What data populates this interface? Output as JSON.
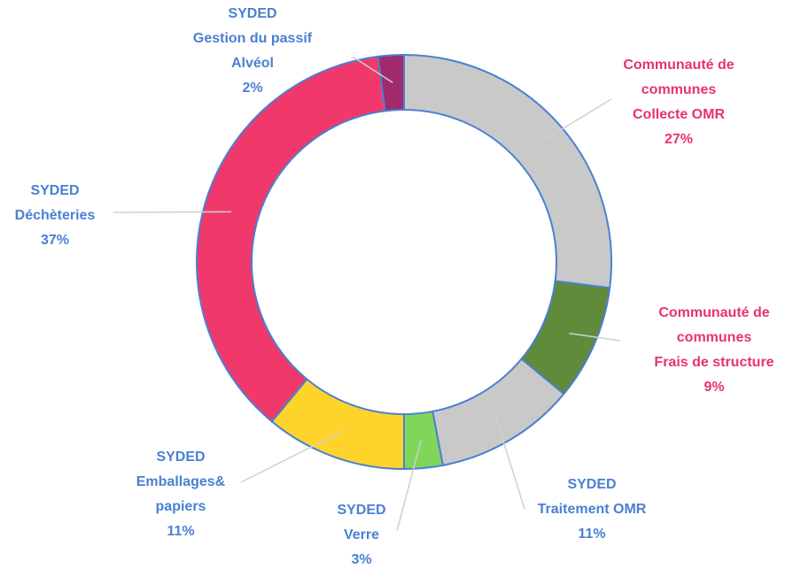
{
  "chart_data": {
    "type": "donut",
    "categories": [
      [
        "Communauté de",
        "communes",
        "Collecte OMR"
      ],
      [
        "Communauté de",
        "communes",
        "Frais de structure"
      ],
      [
        "SYDED",
        "Traitement OMR"
      ],
      [
        "SYDED",
        "Verre"
      ],
      [
        "SYDED",
        "Emballages&",
        "papiers"
      ],
      [
        "SYDED",
        "Déchèteries"
      ],
      [
        "SYDED",
        "Gestion du passif",
        "Alvéol"
      ]
    ],
    "values": [
      27,
      9,
      11,
      3,
      11,
      37,
      2
    ],
    "value_labels": [
      "27%",
      "9%",
      "11%",
      "3%",
      "11%",
      "37%",
      "2%"
    ],
    "colors": [
      "#c9c9c9",
      "#5f8b3b",
      "#c9c9c9",
      "#7fd65a",
      "#ffd42a",
      "#f0386b",
      "#a12a6b"
    ],
    "label_colors": [
      "#e8336b",
      "#e8336b",
      "#4a80d2",
      "#4a80d2",
      "#4a80d2",
      "#4a80d2",
      "#4a80d2"
    ]
  }
}
